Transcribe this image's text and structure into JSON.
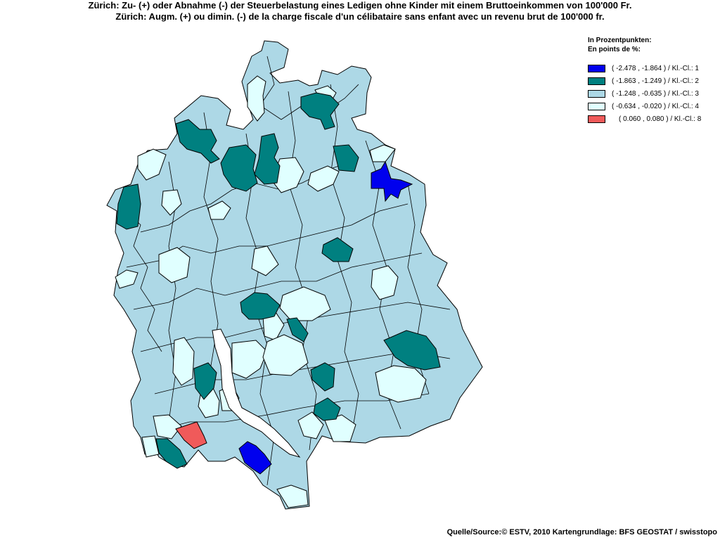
{
  "title_de": "Zürich: Zu- (+) oder Abnahme (-) der Steuerbelastung eines Ledigen ohne Kinder mit einem Bruttoeinkommen von 100'000 Fr.",
  "title_fr": "Zürich: Augm. (+) ou dimin. (-) de la charge fiscale d'un célibataire sans enfant avec un revenu brut de 100'000 fr.",
  "legend": {
    "heading_de": "In Prozentpunkten:",
    "heading_fr": "En points de %:",
    "items": [
      {
        "label": "( -2.478 , -1.864 ) / Kl.-Cl.: 1",
        "color": "#0000ee"
      },
      {
        "label": "( -1.863 , -1.249 ) / Kl.-Cl.: 2",
        "color": "#008080"
      },
      {
        "label": "( -1.248 , -0.635 ) / Kl.-Cl.: 3",
        "color": "#add8e6"
      },
      {
        "label": "( -0.634 , -0.020 ) / Kl.-Cl.: 4",
        "color": "#e0ffff"
      },
      {
        "label": "( 0.060 , 0.080 ) / Kl.-Cl.: 8",
        "color": "#f05a5a"
      }
    ]
  },
  "footer": "Quelle/Source:© ESTV, 2010 Kartengrundlage: BFS GEOSTAT / swisstopo",
  "colors": {
    "class1": "#0000ee",
    "class2": "#008080",
    "class3": "#add8e6",
    "class4": "#e0ffff",
    "class8": "#f05a5a",
    "outline": "#000000",
    "lake": "#ffffff"
  }
}
